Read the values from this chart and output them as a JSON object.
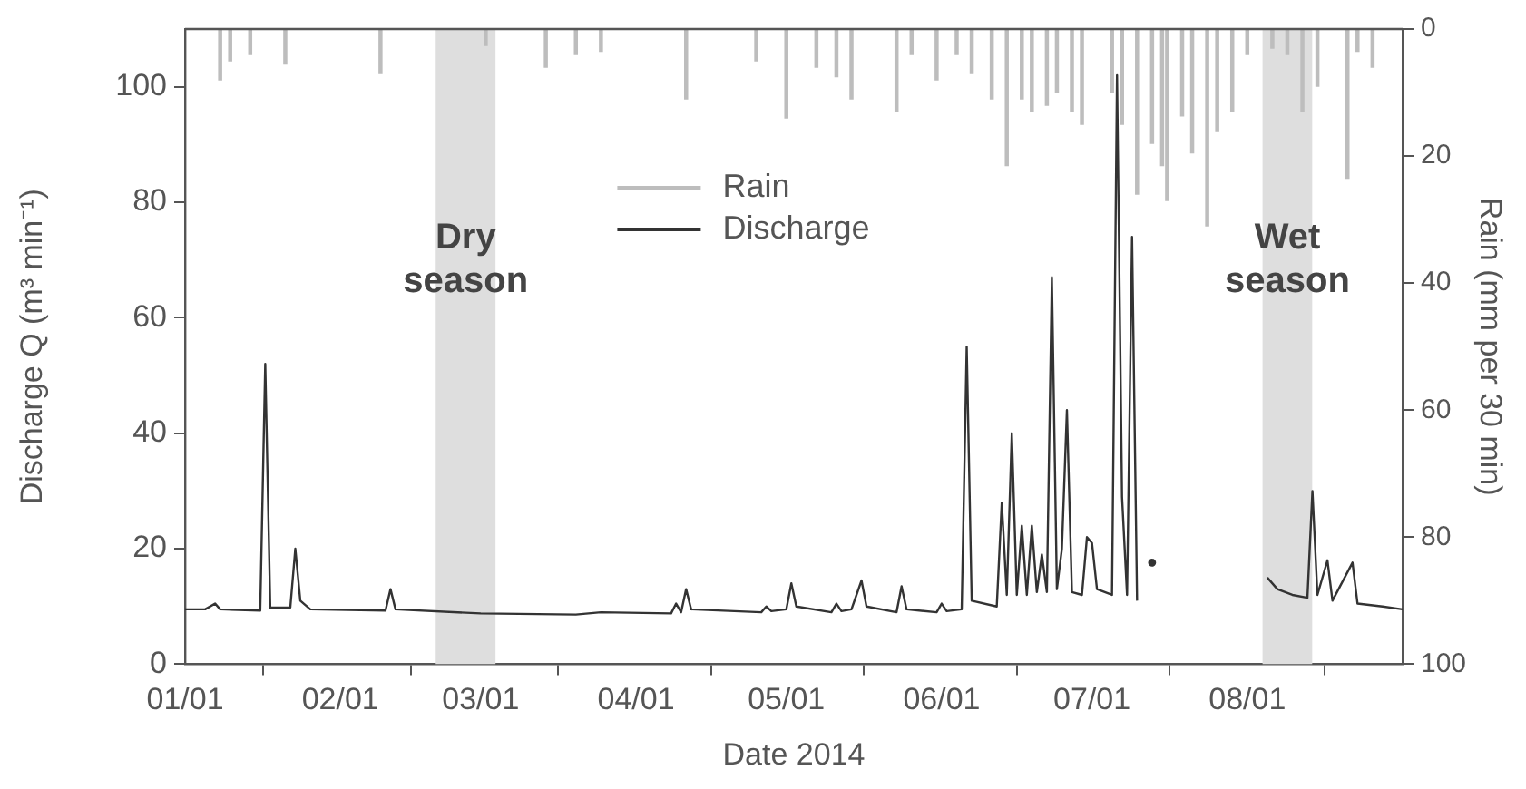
{
  "chart_data": {
    "type": "line",
    "xlabel": "Date 2014",
    "ylabel": "Discharge Q (m³ min⁻¹)",
    "y2label": "Rain (mm per 30 min)",
    "xlim": [
      "2014-01-01",
      "2014-09-01"
    ],
    "xticks": [
      {
        "value": "2014-01-01",
        "label": "01/01"
      },
      {
        "value": "2014-02-01",
        "label": "02/01"
      },
      {
        "value": "2014-03-01",
        "label": "03/01"
      },
      {
        "value": "2014-04-01",
        "label": "04/01"
      },
      {
        "value": "2014-05-01",
        "label": "05/01"
      },
      {
        "value": "2014-06-01",
        "label": "06/01"
      },
      {
        "value": "2014-07-01",
        "label": "07/01"
      },
      {
        "value": "2014-08-01",
        "label": "08/01"
      }
    ],
    "ylim": [
      0,
      110
    ],
    "yticks": [
      0,
      20,
      40,
      60,
      80,
      100
    ],
    "y2lim": [
      100,
      0
    ],
    "y2ticks": [
      0,
      20,
      40,
      60,
      80,
      100
    ],
    "grid": false,
    "legend": "top",
    "marker": "none",
    "bands": [
      {
        "axis": "x",
        "from": "2014-02-20",
        "to": "2014-03-04",
        "label": "Dry season",
        "color": "#dedede"
      },
      {
        "axis": "x",
        "from": "2014-08-04",
        "to": "2014-08-14",
        "label": "Wet season",
        "color": "#dedede"
      }
    ],
    "series": [
      {
        "name": "Rain",
        "type": "bar",
        "axis": "y2",
        "color": "#bdbdbd",
        "x": [
          "2014-01-08",
          "2014-01-10",
          "2014-01-14",
          "2014-01-21",
          "2014-02-09",
          "2014-03-02",
          "2014-03-14",
          "2014-03-20",
          "2014-03-25",
          "2014-04-11",
          "2014-04-25",
          "2014-05-01",
          "2014-05-07",
          "2014-05-11",
          "2014-05-14",
          "2014-05-23",
          "2014-05-26",
          "2014-05-31",
          "2014-06-04",
          "2014-06-07",
          "2014-06-11",
          "2014-06-14",
          "2014-06-17",
          "2014-06-19",
          "2014-06-22",
          "2014-06-24",
          "2014-06-27",
          "2014-06-29",
          "2014-07-05",
          "2014-07-07",
          "2014-07-10",
          "2014-07-13",
          "2014-07-15",
          "2014-07-16",
          "2014-07-19",
          "2014-07-21",
          "2014-07-24",
          "2014-07-26",
          "2014-07-29",
          "2014-08-01",
          "2014-08-06",
          "2014-08-09",
          "2014-08-12",
          "2014-08-15",
          "2014-08-21",
          "2014-08-23",
          "2014-08-26"
        ],
        "values": [
          8,
          5,
          4,
          5.5,
          7,
          2.6,
          6,
          4,
          3.5,
          11,
          5,
          14,
          6,
          7.5,
          11,
          13,
          4,
          8,
          4,
          7,
          11,
          21.5,
          11,
          13,
          12,
          10,
          13,
          15,
          10,
          15,
          26,
          18,
          21.5,
          27,
          13.7,
          19.5,
          31,
          16,
          13,
          4,
          3,
          4,
          13,
          9,
          23.5,
          3.5,
          6
        ]
      },
      {
        "name": "Discharge",
        "color": "#333333",
        "x": [
          "2014-01-01",
          "2014-01-05",
          "2014-01-07",
          "2014-01-08",
          "2014-01-16",
          "2014-01-17",
          "2014-01-18",
          "2014-01-22",
          "2014-01-23",
          "2014-01-24",
          "2014-01-26",
          "2014-02-10",
          "2014-02-11",
          "2014-02-12",
          "2014-03-01",
          "2014-03-20",
          "2014-03-25",
          "2014-04-08",
          "2014-04-09",
          "2014-04-10",
          "2014-04-11",
          "2014-04-12",
          "2014-04-26",
          "2014-04-27",
          "2014-04-28",
          "2014-05-01",
          "2014-05-02",
          "2014-05-03",
          "2014-05-10",
          "2014-05-11",
          "2014-05-12",
          "2014-05-14",
          "2014-05-15",
          "2014-05-16",
          "2014-05-17",
          "2014-05-23",
          "2014-05-24",
          "2014-05-25",
          "2014-05-31",
          "2014-06-01",
          "2014-06-02",
          "2014-06-05",
          "2014-06-06",
          "2014-06-07",
          "2014-06-12",
          "2014-06-13",
          "2014-06-14",
          "2014-06-15",
          "2014-06-16",
          "2014-06-17",
          "2014-06-18",
          "2014-06-19",
          "2014-06-20",
          "2014-06-21",
          "2014-06-22",
          "2014-06-23",
          "2014-06-24",
          "2014-06-25",
          "2014-06-26",
          "2014-06-27",
          "2014-06-29",
          "2014-06-30",
          "2014-07-01",
          "2014-07-02",
          "2014-07-05",
          "2014-07-06",
          "2014-07-07",
          "2014-07-08",
          "2014-07-09",
          "2014-07-10",
          "2014-07-11",
          "2014-07-13",
          "2014-07-20",
          "2014-08-05",
          "2014-08-07",
          "2014-08-10",
          "2014-08-13",
          "2014-08-14",
          "2014-08-15",
          "2014-08-17",
          "2014-08-18",
          "2014-08-22",
          "2014-08-23",
          "2014-08-28",
          "2014-09-01"
        ],
        "values": [
          9.5,
          9.5,
          10.5,
          9.5,
          9.3,
          52,
          9.8,
          9.8,
          20,
          11,
          9.5,
          9.3,
          13,
          9.5,
          8.8,
          8.6,
          9,
          8.8,
          10.5,
          9,
          13,
          9.5,
          9,
          10,
          9.2,
          9.5,
          14,
          10,
          9,
          10.5,
          9.2,
          9.5,
          12,
          14.5,
          10,
          9,
          13.5,
          9.5,
          9,
          10.5,
          9.2,
          9.5,
          55,
          11,
          10,
          28,
          12,
          40,
          12,
          24,
          12,
          24,
          12.5,
          19,
          12.5,
          67,
          13,
          20,
          44,
          12.5,
          12,
          22,
          21,
          13,
          12,
          102,
          29,
          12,
          74,
          11,
          null,
          17.6,
          null,
          15,
          13,
          12,
          11.5,
          30,
          12,
          18,
          11,
          17.6,
          10.5,
          10,
          9.5
        ]
      }
    ]
  }
}
